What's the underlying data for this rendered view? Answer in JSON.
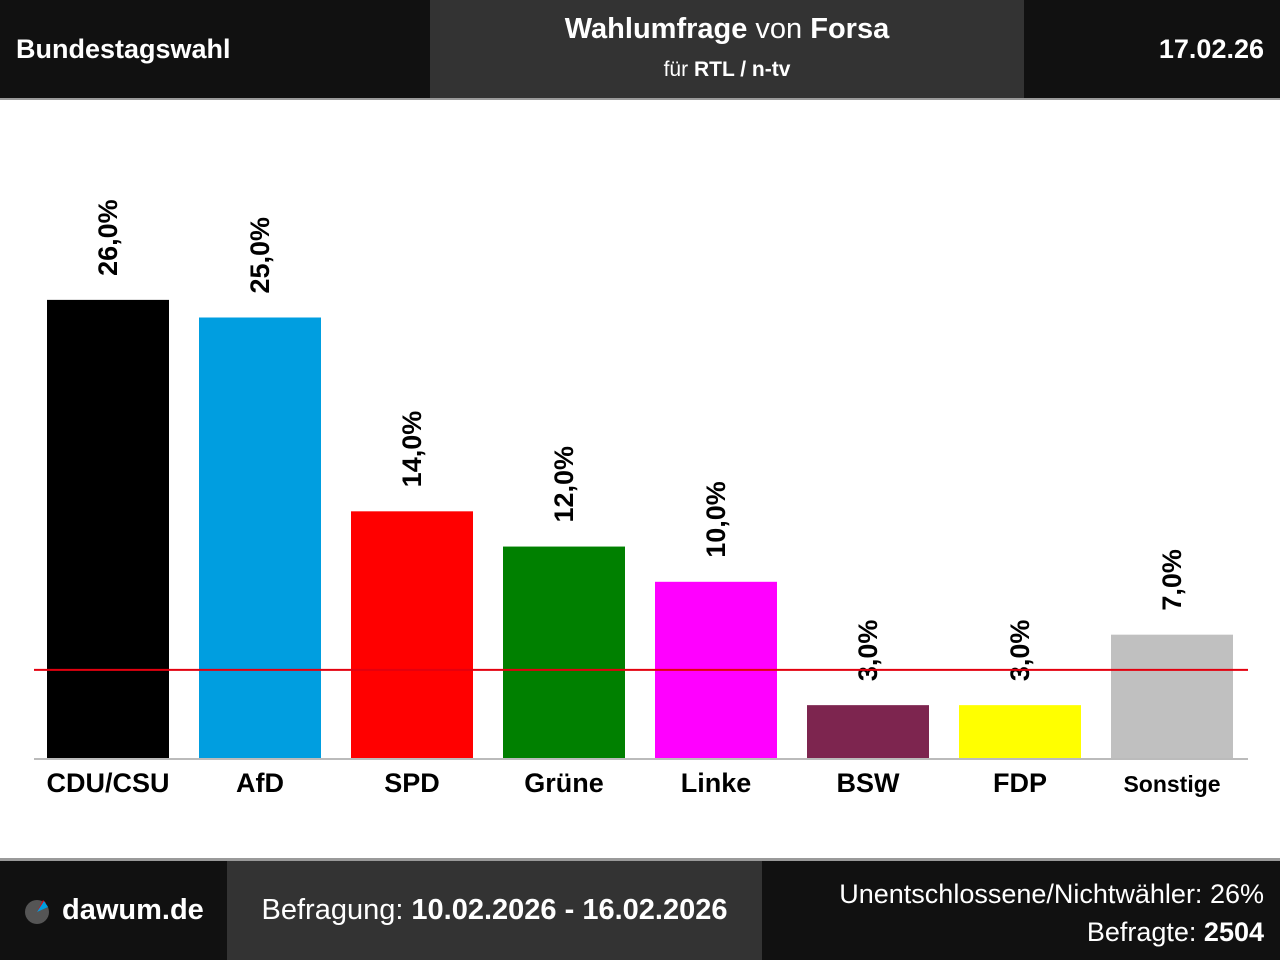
{
  "header": {
    "left_title": "Bundestagswahl",
    "title_main": "Wahlumfrage",
    "title_mid": "von",
    "institute": "Forsa",
    "client_prefix": "für",
    "client": "RTL / n-tv",
    "date": "17.02.26"
  },
  "chart_data": {
    "type": "bar",
    "title": "",
    "xlabel": "",
    "ylabel": "",
    "categories": [
      "CDU/CSU",
      "AfD",
      "SPD",
      "Grüne",
      "Linke",
      "BSW",
      "FDP",
      "Sonstige"
    ],
    "values": [
      26.0,
      25.0,
      14.0,
      12.0,
      10.0,
      3.0,
      3.0,
      7.0
    ],
    "value_labels": [
      "26,0%",
      "25,0%",
      "14,0%",
      "12,0%",
      "10,0%",
      "3,0%",
      "3,0%",
      "7,0%"
    ],
    "colors": [
      "#000000",
      "#009ee0",
      "#ff0000",
      "#008000",
      "#ff00ff",
      "#7d254f",
      "#ffff00",
      "#c0c0c0"
    ],
    "threshold": 5,
    "threshold_color": "#e3000f",
    "grid": false
  },
  "footer": {
    "site": "dawum.de",
    "survey_label": "Befragung:",
    "survey_period": "10.02.2026 - 16.02.2026",
    "undecided_label": "Unentschlossene/Nichtwähler:",
    "undecided_value": "26%",
    "respondents_label": "Befragte:",
    "respondents_value": "2504"
  }
}
